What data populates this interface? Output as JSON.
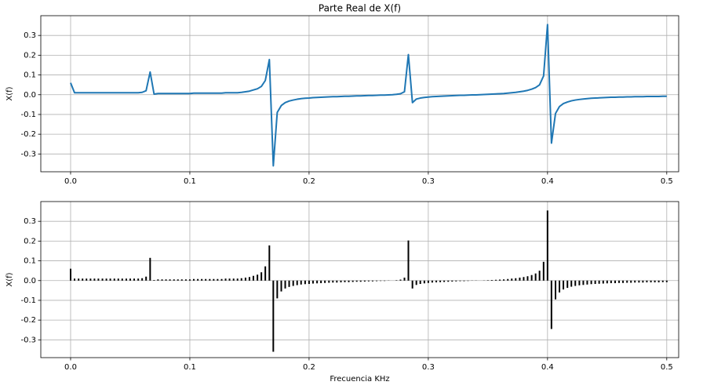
{
  "chart_data": [
    {
      "type": "line",
      "title": "Parte Real de X(f)",
      "ylabel": "X(f)",
      "color": "#1f77b4",
      "grid": true,
      "xlim": [
        -0.025,
        0.51
      ],
      "ylim": [
        -0.39,
        0.4
      ],
      "xticks": [
        {
          "value": 0,
          "label": "0.0"
        },
        0.1,
        0.2,
        0.3,
        0.4,
        0.5
      ],
      "yticks": [
        -0.3,
        -0.2,
        -0.1,
        {
          "value": 0,
          "label": "0.0"
        },
        0.1,
        0.2,
        0.3
      ],
      "x": [
        0,
        0.0033,
        0.0067,
        0.01,
        0.0133,
        0.0167,
        0.02,
        0.0233,
        0.0267,
        0.03,
        0.0333,
        0.0367,
        0.04,
        0.0433,
        0.0467,
        0.05,
        0.0533,
        0.0567,
        0.06,
        0.0633,
        0.0667,
        0.07,
        0.0733,
        0.0767,
        0.08,
        0.0833,
        0.0867,
        0.09,
        0.0933,
        0.0967,
        0.1,
        0.1033,
        0.1067,
        0.11,
        0.1133,
        0.1167,
        0.12,
        0.1233,
        0.1267,
        0.13,
        0.1333,
        0.1367,
        0.14,
        0.1433,
        0.1467,
        0.15,
        0.1533,
        0.1567,
        0.16,
        0.1633,
        0.1667,
        0.17,
        0.1733,
        0.1767,
        0.18,
        0.1833,
        0.1867,
        0.19,
        0.1933,
        0.1967,
        0.2,
        0.2033,
        0.2067,
        0.21,
        0.2133,
        0.2167,
        0.22,
        0.2233,
        0.2267,
        0.23,
        0.2333,
        0.2367,
        0.24,
        0.2433,
        0.2467,
        0.25,
        0.2533,
        0.2567,
        0.26,
        0.2633,
        0.2667,
        0.27,
        0.2733,
        0.2767,
        0.28,
        0.2833,
        0.2867,
        0.29,
        0.2933,
        0.2967,
        0.3,
        0.3033,
        0.3067,
        0.31,
        0.3133,
        0.3167,
        0.32,
        0.3233,
        0.3267,
        0.33,
        0.3333,
        0.3367,
        0.34,
        0.3433,
        0.3467,
        0.35,
        0.3533,
        0.3567,
        0.36,
        0.3633,
        0.3667,
        0.37,
        0.3733,
        0.3767,
        0.38,
        0.3833,
        0.3867,
        0.39,
        0.3933,
        0.3967,
        0.4,
        0.4033,
        0.4067,
        0.41,
        0.4133,
        0.4167,
        0.42,
        0.4233,
        0.4267,
        0.43,
        0.4333,
        0.4367,
        0.44,
        0.4433,
        0.4467,
        0.45,
        0.4533,
        0.4567,
        0.46,
        0.4633,
        0.4667,
        0.47,
        0.4733,
        0.4767,
        0.48,
        0.4833,
        0.4867,
        0.49,
        0.4933,
        0.4967,
        0.5
      ],
      "values": [
        0.06,
        0.01,
        0.01,
        0.01,
        0.01,
        0.01,
        0.01,
        0.01,
        0.01,
        0.01,
        0.01,
        0.01,
        0.01,
        0.01,
        0.01,
        0.01,
        0.01,
        0.01,
        0.012,
        0.02,
        0.115,
        0.003,
        0.006,
        0.006,
        0.006,
        0.006,
        0.006,
        0.006,
        0.006,
        0.006,
        0.006,
        0.008,
        0.008,
        0.008,
        0.008,
        0.008,
        0.008,
        0.008,
        0.008,
        0.01,
        0.01,
        0.01,
        0.01,
        0.012,
        0.015,
        0.018,
        0.024,
        0.03,
        0.042,
        0.072,
        0.178,
        -0.36,
        -0.09,
        -0.055,
        -0.04,
        -0.032,
        -0.027,
        -0.023,
        -0.02,
        -0.018,
        -0.017,
        -0.015,
        -0.014,
        -0.013,
        -0.012,
        -0.011,
        -0.01,
        -0.01,
        -0.009,
        -0.008,
        -0.008,
        -0.007,
        -0.006,
        -0.006,
        -0.005,
        -0.004,
        -0.004,
        -0.003,
        -0.002,
        -0.002,
        -0.001,
        0,
        0.002,
        0.005,
        0.015,
        0.203,
        -0.04,
        -0.022,
        -0.017,
        -0.014,
        -0.012,
        -0.01,
        -0.009,
        -0.008,
        -0.007,
        -0.006,
        -0.005,
        -0.004,
        -0.003,
        -0.003,
        -0.002,
        -0.001,
        -0.001,
        0,
        0.001,
        0.002,
        0.003,
        0.004,
        0.005,
        0.006,
        0.008,
        0.01,
        0.012,
        0.015,
        0.018,
        0.022,
        0.028,
        0.036,
        0.05,
        0.095,
        0.355,
        -0.245,
        -0.095,
        -0.06,
        -0.045,
        -0.037,
        -0.031,
        -0.027,
        -0.024,
        -0.022,
        -0.02,
        -0.018,
        -0.017,
        -0.016,
        -0.015,
        -0.014,
        -0.013,
        -0.013,
        -0.012,
        -0.012,
        -0.011,
        -0.011,
        -0.01,
        -0.01,
        -0.01,
        -0.009,
        -0.009,
        -0.009,
        -0.009,
        -0.008,
        -0.008
      ]
    },
    {
      "type": "stem",
      "ylabel": "X(f)",
      "xlabel": "Frecuencia KHz",
      "color": "#000000",
      "grid": true,
      "xlim": [
        -0.025,
        0.51
      ],
      "ylim": [
        -0.39,
        0.4
      ],
      "xticks": [
        {
          "value": 0,
          "label": "0.0"
        },
        0.1,
        0.2,
        0.3,
        0.4,
        0.5
      ],
      "yticks": [
        -0.3,
        -0.2,
        -0.1,
        {
          "value": 0,
          "label": "0.0"
        },
        0.1,
        0.2,
        0.3
      ],
      "x": [
        0,
        0.0033,
        0.0067,
        0.01,
        0.0133,
        0.0167,
        0.02,
        0.0233,
        0.0267,
        0.03,
        0.0333,
        0.0367,
        0.04,
        0.0433,
        0.0467,
        0.05,
        0.0533,
        0.0567,
        0.06,
        0.0633,
        0.0667,
        0.07,
        0.0733,
        0.0767,
        0.08,
        0.0833,
        0.0867,
        0.09,
        0.0933,
        0.0967,
        0.1,
        0.1033,
        0.1067,
        0.11,
        0.1133,
        0.1167,
        0.12,
        0.1233,
        0.1267,
        0.13,
        0.1333,
        0.1367,
        0.14,
        0.1433,
        0.1467,
        0.15,
        0.1533,
        0.1567,
        0.16,
        0.1633,
        0.1667,
        0.17,
        0.1733,
        0.1767,
        0.18,
        0.1833,
        0.1867,
        0.19,
        0.1933,
        0.1967,
        0.2,
        0.2033,
        0.2067,
        0.21,
        0.2133,
        0.2167,
        0.22,
        0.2233,
        0.2267,
        0.23,
        0.2333,
        0.2367,
        0.24,
        0.2433,
        0.2467,
        0.25,
        0.2533,
        0.2567,
        0.26,
        0.2633,
        0.2667,
        0.27,
        0.2733,
        0.2767,
        0.28,
        0.2833,
        0.2867,
        0.29,
        0.2933,
        0.2967,
        0.3,
        0.3033,
        0.3067,
        0.31,
        0.3133,
        0.3167,
        0.32,
        0.3233,
        0.3267,
        0.33,
        0.3333,
        0.3367,
        0.34,
        0.3433,
        0.3467,
        0.35,
        0.3533,
        0.3567,
        0.36,
        0.3633,
        0.3667,
        0.37,
        0.3733,
        0.3767,
        0.38,
        0.3833,
        0.3867,
        0.39,
        0.3933,
        0.3967,
        0.4,
        0.4033,
        0.4067,
        0.41,
        0.4133,
        0.4167,
        0.42,
        0.4233,
        0.4267,
        0.43,
        0.4333,
        0.4367,
        0.44,
        0.4433,
        0.4467,
        0.45,
        0.4533,
        0.4567,
        0.46,
        0.4633,
        0.4667,
        0.47,
        0.4733,
        0.4767,
        0.48,
        0.4833,
        0.4867,
        0.49,
        0.4933,
        0.4967,
        0.5
      ],
      "values": [
        0.06,
        0.01,
        0.01,
        0.01,
        0.01,
        0.01,
        0.01,
        0.01,
        0.01,
        0.01,
        0.01,
        0.01,
        0.01,
        0.01,
        0.01,
        0.01,
        0.01,
        0.01,
        0.012,
        0.02,
        0.115,
        0.003,
        0.006,
        0.006,
        0.006,
        0.006,
        0.006,
        0.006,
        0.006,
        0.006,
        0.006,
        0.008,
        0.008,
        0.008,
        0.008,
        0.008,
        0.008,
        0.008,
        0.008,
        0.01,
        0.01,
        0.01,
        0.01,
        0.012,
        0.015,
        0.018,
        0.024,
        0.03,
        0.042,
        0.072,
        0.178,
        -0.36,
        -0.09,
        -0.055,
        -0.04,
        -0.032,
        -0.027,
        -0.023,
        -0.02,
        -0.018,
        -0.017,
        -0.015,
        -0.014,
        -0.013,
        -0.012,
        -0.011,
        -0.01,
        -0.01,
        -0.009,
        -0.008,
        -0.008,
        -0.007,
        -0.006,
        -0.006,
        -0.005,
        -0.004,
        -0.004,
        -0.003,
        -0.002,
        -0.002,
        -0.001,
        0,
        0.002,
        0.005,
        0.015,
        0.203,
        -0.04,
        -0.022,
        -0.017,
        -0.014,
        -0.012,
        -0.01,
        -0.009,
        -0.008,
        -0.007,
        -0.006,
        -0.005,
        -0.004,
        -0.003,
        -0.003,
        -0.002,
        -0.001,
        -0.001,
        0,
        0.001,
        0.002,
        0.003,
        0.004,
        0.005,
        0.006,
        0.008,
        0.01,
        0.012,
        0.015,
        0.018,
        0.022,
        0.028,
        0.036,
        0.05,
        0.095,
        0.355,
        -0.245,
        -0.095,
        -0.06,
        -0.045,
        -0.037,
        -0.031,
        -0.027,
        -0.024,
        -0.022,
        -0.02,
        -0.018,
        -0.017,
        -0.016,
        -0.015,
        -0.014,
        -0.013,
        -0.013,
        -0.012,
        -0.012,
        -0.011,
        -0.011,
        -0.01,
        -0.01,
        -0.01,
        -0.009,
        -0.009,
        -0.009,
        -0.009,
        -0.008,
        -0.008
      ]
    }
  ]
}
